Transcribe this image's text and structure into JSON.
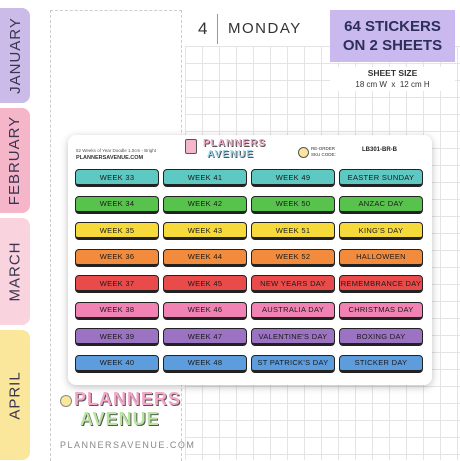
{
  "tabs": [
    "JANUARY",
    "FEBRUARY",
    "MARCH",
    "APRIL"
  ],
  "planner": {
    "day_number": "4",
    "day_name": "MONDAY"
  },
  "info": {
    "title_line1": "64 STICKERS",
    "title_line2": "ON 2 SHEETS",
    "sheet_size_label": "SHEET SIZE",
    "sheet_size": "18 cm W  x  12 cm H"
  },
  "sheet": {
    "product_name": "52 Weeks of Year Doodle 1.0cm - Bright",
    "website": "PLANNERSAVENUE.COM",
    "logo_line1": "PLANNERS",
    "logo_line2": "AVENUE",
    "reorder_label": "RE-ORDER",
    "sku_label": "SKU CODE:",
    "sku": "LB301-BR-B",
    "columns": [
      [
        "WEEK 33",
        "WEEK 34",
        "WEEK 35",
        "WEEK 36",
        "WEEK 37",
        "WEEK 38",
        "WEEK 39",
        "WEEK 40"
      ],
      [
        "WEEK 41",
        "WEEK 42",
        "WEEK 43",
        "WEEK 44",
        "WEEK 45",
        "WEEK 46",
        "WEEK 47",
        "WEEK 48"
      ],
      [
        "WEEK 49",
        "WEEK 50",
        "WEEK 51",
        "WEEK 52",
        "NEW YEARS DAY",
        "AUSTRALIA DAY",
        "VALENTINE'S DAY",
        "ST PATRICK'S DAY"
      ],
      [
        "EASTER SUNDAY",
        "ANZAC DAY",
        "KING'S DAY",
        "HALLOWEEN",
        "REMEMBRANCE DAY",
        "CHRISTMAS DAY",
        "BOXING DAY",
        "STICKER DAY"
      ]
    ]
  },
  "footer": {
    "logo_line1": "PLANNERS",
    "logo_line2": "AVENUE",
    "website": "PLANNERSAVENUE.COM"
  }
}
